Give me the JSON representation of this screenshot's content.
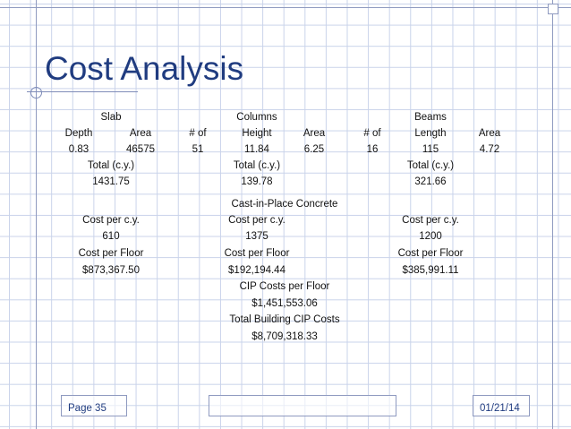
{
  "title": "Cost Analysis",
  "table": {
    "slab_header": "Slab",
    "columns_header": "Columns",
    "beams_header": "Beams",
    "slab_depth_label": "Depth",
    "slab_area_label": "Area",
    "col_count_label": "# of",
    "col_height_label": "Height",
    "col_area_label": "Area",
    "beam_count_label": "# of",
    "beam_length_label": "Length",
    "beam_area_label": "Area",
    "slab_depth": "0.83",
    "slab_area": "46575",
    "col_count": "51",
    "col_height": "11.84",
    "col_area": "6.25",
    "beam_count": "16",
    "beam_length": "115",
    "beam_area": "4.72",
    "total_label": "Total (c.y.)",
    "slab_total": "1431.75",
    "col_total": "139.78",
    "beam_total": "321.66",
    "cip_header": "Cast-in-Place Concrete",
    "cost_cy_label": "Cost per c.y.",
    "slab_cost_cy": "610",
    "col_cost_cy": "1375",
    "beam_cost_cy": "1200",
    "cost_floor_label": "Cost per Floor",
    "slab_cost_floor": "$873,367.50",
    "col_cost_floor": "$192,194.44",
    "beam_cost_floor": "$385,991.11",
    "cip_floor_label": "CIP Costs per Floor",
    "cip_floor_value": "$1,451,553.06",
    "cip_total_label": "Total Building CIP Costs",
    "cip_total_value": "$8,709,318.33"
  },
  "footer": {
    "page": "Page 35",
    "date": "01/21/14"
  },
  "colors": {
    "title": "#203c80",
    "grid": "#c9d3ea",
    "accent_line": "#8f9ac0"
  }
}
